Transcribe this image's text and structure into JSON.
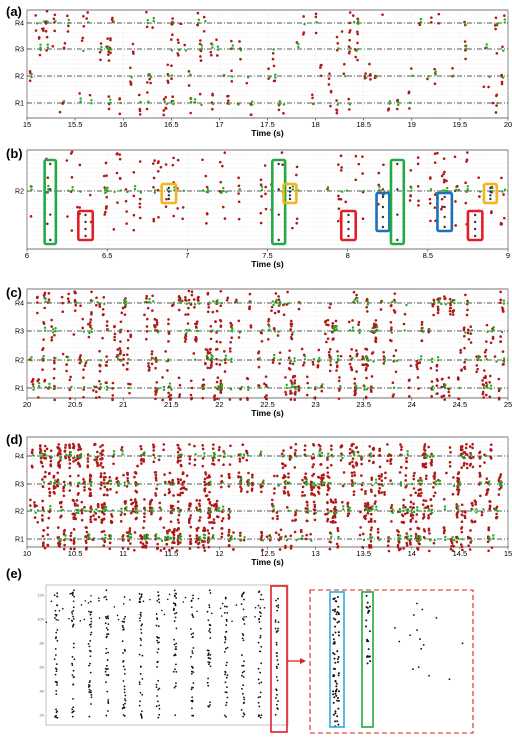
{
  "colors": {
    "green": "#22aa22",
    "red": "#b01818",
    "black": "#111111",
    "box_green": "#22aa44",
    "box_red": "#e21f26",
    "box_yellow": "#f3b51c",
    "box_blue": "#1c6fb8",
    "box_cyan": "#35a8e0",
    "dash_red": "#e21f26"
  },
  "chart_data": [
    {
      "panel": "(a)",
      "type": "scatter",
      "xlabel": "Time (s)",
      "xlim": [
        15,
        20
      ],
      "x_ticks": [
        "15",
        "15.5",
        "16",
        "16.5",
        "17",
        "17.5",
        "18",
        "18.5",
        "19",
        "19.5",
        "20"
      ],
      "rows": [
        "R4",
        "R3",
        "R2",
        "R1"
      ],
      "grid": true,
      "density": 0.5
    },
    {
      "panel": "(b)",
      "type": "scatter",
      "xlabel": "Time (s)",
      "xlim": [
        6,
        9
      ],
      "x_ticks": [
        "6",
        "6.5",
        "7",
        "7.5",
        "8",
        "8.5",
        "9"
      ],
      "rows": [
        "R2"
      ],
      "grid": true,
      "highlight_boxes": [
        {
          "color": "green",
          "x": [
            6.11,
            6.18
          ]
        },
        {
          "color": "red",
          "x": [
            6.32,
            6.41
          ]
        },
        {
          "color": "yellow",
          "x": [
            6.84,
            6.93
          ]
        },
        {
          "color": "green",
          "x": [
            7.53,
            7.61
          ]
        },
        {
          "color": "yellow",
          "x": [
            7.6,
            7.68
          ]
        },
        {
          "color": "red",
          "x": [
            7.96,
            8.05
          ]
        },
        {
          "color": "blue",
          "x": [
            8.18,
            8.26
          ]
        },
        {
          "color": "green",
          "x": [
            8.27,
            8.35
          ]
        },
        {
          "color": "blue",
          "x": [
            8.56,
            8.65
          ]
        },
        {
          "color": "red",
          "x": [
            8.75,
            8.84
          ]
        },
        {
          "color": "yellow",
          "x": [
            8.85,
            8.93
          ]
        }
      ]
    },
    {
      "panel": "(c)",
      "type": "scatter",
      "xlabel": "Time (s)",
      "xlim": [
        20,
        25
      ],
      "x_ticks": [
        "20",
        "20.5",
        "21",
        "21.5",
        "22",
        "22.5",
        "23",
        "23.5",
        "24",
        "24.5",
        "25"
      ],
      "rows": [
        "R4",
        "R3",
        "R2",
        "R1"
      ],
      "grid": true,
      "density": 1.0
    },
    {
      "panel": "(d)",
      "type": "scatter",
      "xlabel": "Time (s)",
      "xlim": [
        10,
        15
      ],
      "x_ticks": [
        "10",
        "10.5",
        "11",
        "11.5",
        "12",
        "12.5",
        "13",
        "13.5",
        "14",
        "14.5",
        "15"
      ],
      "rows": [
        "R4",
        "R3",
        "R2",
        "R1"
      ],
      "grid": true,
      "density": 1.6
    },
    {
      "panel": "(e)",
      "type": "scatter",
      "xlabel": "",
      "rows": [],
      "y_ticks": [
        "120",
        "100",
        "80",
        "60",
        "40",
        "20"
      ],
      "zoom": "red box magnified into dashed inset"
    }
  ]
}
